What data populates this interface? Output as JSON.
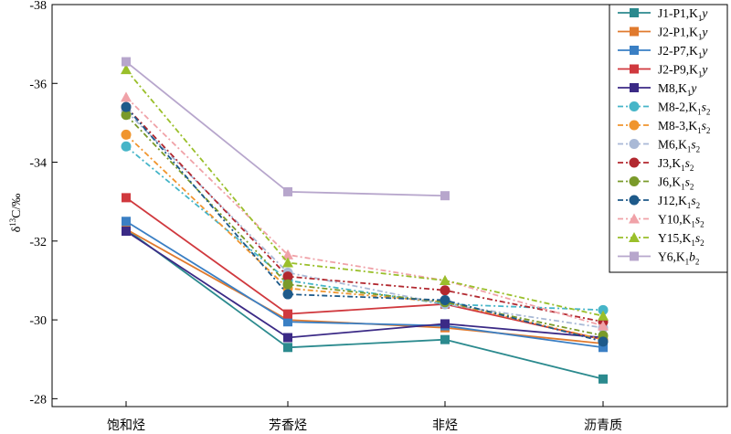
{
  "chart_data": {
    "type": "line",
    "categories": [
      "饱和烃",
      "芳香烃",
      "非烃",
      "沥青质"
    ],
    "ylabel": "δ13C/‰",
    "ylim": [
      -27.8,
      -38
    ],
    "y_ticks": [
      -28,
      -30,
      -32,
      -34,
      -36,
      -38
    ],
    "y_axis_inverted": true,
    "grid": false,
    "legend_position": "top-right",
    "series": [
      {
        "name": "J1-P1,K1y",
        "legend": {
          "base": "J1-P1,K",
          "sub": "1",
          "italic": "y",
          "sub2": ""
        },
        "color": "#2b8a8e",
        "marker": "square",
        "dash": "solid",
        "values": [
          -32.3,
          -29.3,
          -29.5,
          -28.5
        ]
      },
      {
        "name": "J2-P1,K1y",
        "legend": {
          "base": "J2-P1,K",
          "sub": "1",
          "italic": "y",
          "sub2": ""
        },
        "color": "#e07a2e",
        "marker": "square",
        "dash": "solid",
        "values": [
          -32.3,
          -30.0,
          -29.8,
          -29.4
        ]
      },
      {
        "name": "J2-P7,K1y",
        "legend": {
          "base": "J2-P7,K",
          "sub": "1",
          "italic": "y",
          "sub2": ""
        },
        "color": "#3a7fc4",
        "marker": "square",
        "dash": "solid",
        "values": [
          -32.5,
          -29.95,
          -29.85,
          -29.3
        ]
      },
      {
        "name": "J2-P9,K1y",
        "legend": {
          "base": "J2-P9,K",
          "sub": "1",
          "italic": "y",
          "sub2": ""
        },
        "color": "#d0393e",
        "marker": "square",
        "dash": "solid",
        "values": [
          -33.1,
          -30.15,
          -30.4,
          -29.5
        ]
      },
      {
        "name": "M8,K1y",
        "legend": {
          "base": "M8,K",
          "sub": "1",
          "italic": "y",
          "sub2": ""
        },
        "color": "#3b2a86",
        "marker": "square",
        "dash": "solid",
        "values": [
          -32.25,
          -29.55,
          -29.9,
          -29.55
        ]
      },
      {
        "name": "M8-2,K1s2",
        "legend": {
          "base": "M8-2,K",
          "sub": "1",
          "italic": "s",
          "sub2": "2"
        },
        "color": "#46b5c8",
        "marker": "circle",
        "dash": "dashdot",
        "values": [
          -34.4,
          -31.0,
          -30.4,
          -30.25
        ]
      },
      {
        "name": "M8-3,K1s2",
        "legend": {
          "base": "M8-3,K",
          "sub": "1",
          "italic": "s",
          "sub2": "2"
        },
        "color": "#f0952e",
        "marker": "circle",
        "dash": "dashdot",
        "values": [
          -34.7,
          -30.8,
          -30.45,
          -29.5
        ]
      },
      {
        "name": "M6,K1s2",
        "legend": {
          "base": "M6,K",
          "sub": "1",
          "italic": "s",
          "sub2": "2"
        },
        "color": "#a9b9d6",
        "marker": "circle",
        "dash": "dashdot",
        "values": [
          -35.3,
          -31.2,
          -30.4,
          -29.8
        ]
      },
      {
        "name": "J3,K1s2",
        "legend": {
          "base": "J3,K",
          "sub": "1",
          "italic": "s",
          "sub2": "2"
        },
        "color": "#b2282f",
        "marker": "circle",
        "dash": "dashdot",
        "values": [
          -35.4,
          -31.1,
          -30.75,
          -29.95
        ]
      },
      {
        "name": "J6,K1s2",
        "legend": {
          "base": "J6,K",
          "sub": "1",
          "italic": "s",
          "sub2": "2"
        },
        "color": "#7a9a2a",
        "marker": "circle",
        "dash": "dashdot",
        "values": [
          -35.2,
          -30.9,
          -30.45,
          -29.6
        ]
      },
      {
        "name": "J12,K1s2",
        "legend": {
          "base": "J12,K",
          "sub": "1",
          "italic": "s",
          "sub2": "2"
        },
        "color": "#1e5a8a",
        "marker": "circle",
        "dash": "dashdot",
        "values": [
          -35.4,
          -30.65,
          -30.5,
          -29.45
        ]
      },
      {
        "name": "Y10,K1s2",
        "legend": {
          "base": "Y10,K",
          "sub": "1",
          "italic": "s",
          "sub2": "2"
        },
        "color": "#f0a2a8",
        "marker": "triangle",
        "dash": "dashdot",
        "values": [
          -35.65,
          -31.65,
          -31.0,
          -29.85
        ]
      },
      {
        "name": "Y15,K1s2",
        "legend": {
          "base": "Y15,K",
          "sub": "1",
          "italic": "s",
          "sub2": "2"
        },
        "color": "#9abf2a",
        "marker": "triangle",
        "dash": "dashdot",
        "values": [
          -36.35,
          -31.45,
          -31.0,
          -30.1
        ]
      },
      {
        "name": "Y6,K1b2",
        "legend": {
          "base": "Y6,K",
          "sub": "1",
          "italic": "b",
          "sub2": "2"
        },
        "color": "#b7a6cc",
        "marker": "square",
        "dash": "solid",
        "values": [
          -36.55,
          -33.25,
          -33.15,
          null
        ]
      }
    ]
  }
}
